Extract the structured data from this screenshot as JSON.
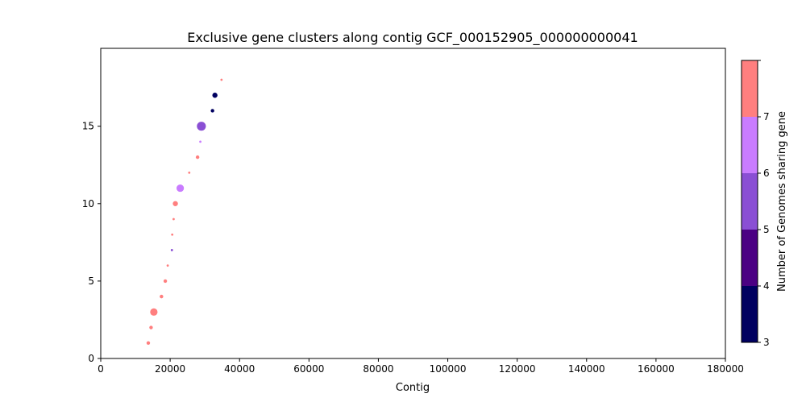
{
  "chart_data": {
    "type": "scatter",
    "title": "Exclusive gene clusters along contig GCF_000152905_000000000041",
    "xlabel": "Contig",
    "ylabel": "",
    "xlim": [
      0,
      180000
    ],
    "ylim": [
      0,
      20
    ],
    "xticks": [
      0,
      20000,
      40000,
      60000,
      80000,
      100000,
      120000,
      140000,
      160000,
      180000
    ],
    "yticks": [
      0,
      5,
      10,
      15
    ],
    "grid": false,
    "points": [
      {
        "x": 13700,
        "y": 1,
        "genomes": 7,
        "size": 2
      },
      {
        "x": 14500,
        "y": 2,
        "genomes": 7,
        "size": 2
      },
      {
        "x": 15300,
        "y": 3,
        "genomes": 7,
        "size": 4
      },
      {
        "x": 17500,
        "y": 4,
        "genomes": 7,
        "size": 2
      },
      {
        "x": 18600,
        "y": 5,
        "genomes": 7,
        "size": 2
      },
      {
        "x": 19300,
        "y": 6,
        "genomes": 7,
        "size": 1
      },
      {
        "x": 20500,
        "y": 7,
        "genomes": 5,
        "size": 1
      },
      {
        "x": 20600,
        "y": 8,
        "genomes": 7,
        "size": 1
      },
      {
        "x": 21000,
        "y": 9,
        "genomes": 7,
        "size": 1
      },
      {
        "x": 21500,
        "y": 10,
        "genomes": 7,
        "size": 3
      },
      {
        "x": 22900,
        "y": 11,
        "genomes": 6,
        "size": 4
      },
      {
        "x": 25500,
        "y": 12,
        "genomes": 7,
        "size": 1
      },
      {
        "x": 27900,
        "y": 13,
        "genomes": 7,
        "size": 2
      },
      {
        "x": 28700,
        "y": 14,
        "genomes": 6,
        "size": 1
      },
      {
        "x": 29000,
        "y": 15,
        "genomes": 5,
        "size": 5
      },
      {
        "x": 32200,
        "y": 16,
        "genomes": 3,
        "size": 2
      },
      {
        "x": 32900,
        "y": 17,
        "genomes": 3,
        "size": 3
      },
      {
        "x": 34800,
        "y": 18,
        "genomes": 7,
        "size": 1
      }
    ],
    "colorbar": {
      "label": "Number of Genomes sharing gene",
      "ticks": [
        "3",
        "4",
        "5",
        "6",
        "7"
      ],
      "bands": [
        {
          "genomes": 3,
          "color": "#000060"
        },
        {
          "genomes": 4,
          "color": "#4b0083"
        },
        {
          "genomes": 5,
          "color": "#8a4fd4"
        },
        {
          "genomes": 6,
          "color": "#c97cff"
        },
        {
          "genomes": 7,
          "color": "#ff7f7f"
        }
      ]
    }
  }
}
